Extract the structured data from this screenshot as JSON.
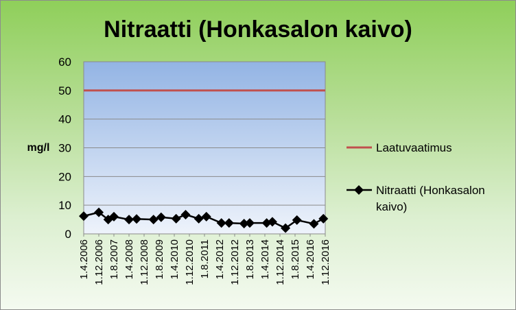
{
  "chart_data": {
    "type": "line",
    "title": "Nitraatti (Honkasalon kaivo)",
    "ylabel": "mg/l",
    "xlabel": "",
    "ylim": [
      0,
      60
    ],
    "yticks": [
      0,
      10,
      20,
      30,
      40,
      50,
      60
    ],
    "grid": true,
    "legend_position": "right",
    "x_tick_labels": [
      "1.4.2006",
      "1.12.2006",
      "1.8.2007",
      "1.4.2008",
      "1.12.2008",
      "1.8.2009",
      "1.4.2010",
      "1.12.2010",
      "1.8.2011",
      "1.4.2012",
      "1.12.2012",
      "1.8.2013",
      "1.4.2014",
      "1.12.2014",
      "1.8.2015",
      "1.4.2016",
      "1.12.2016"
    ],
    "x_range": [
      "2006-04-01",
      "2016-12-01"
    ],
    "series": [
      {
        "name": "Laatuvaatimus",
        "color": "#c0504d",
        "marker": "none",
        "points": [
          {
            "date": "2006-04-01",
            "value": 50
          },
          {
            "date": "2016-12-01",
            "value": 50
          }
        ]
      },
      {
        "name": "Nitraatti (Honkasalon kaivo)",
        "color": "#000000",
        "marker": "diamond",
        "points": [
          {
            "date": "2006-04-01",
            "value": 6.2
          },
          {
            "date": "2006-12-01",
            "value": 7.5
          },
          {
            "date": "2007-05-01",
            "value": 5.0
          },
          {
            "date": "2007-08-01",
            "value": 6.0
          },
          {
            "date": "2008-04-01",
            "value": 5.0
          },
          {
            "date": "2008-08-01",
            "value": 5.2
          },
          {
            "date": "2009-05-01",
            "value": 5.0
          },
          {
            "date": "2009-09-01",
            "value": 5.8
          },
          {
            "date": "2010-05-01",
            "value": 5.3
          },
          {
            "date": "2010-10-01",
            "value": 6.7
          },
          {
            "date": "2011-05-01",
            "value": 5.3
          },
          {
            "date": "2011-09-01",
            "value": 6.0
          },
          {
            "date": "2012-05-01",
            "value": 3.8
          },
          {
            "date": "2012-09-01",
            "value": 3.8
          },
          {
            "date": "2013-05-01",
            "value": 3.6
          },
          {
            "date": "2013-08-01",
            "value": 3.8
          },
          {
            "date": "2014-05-01",
            "value": 3.8
          },
          {
            "date": "2014-08-01",
            "value": 4.2
          },
          {
            "date": "2015-03-01",
            "value": 2.0
          },
          {
            "date": "2015-09-01",
            "value": 4.8
          },
          {
            "date": "2016-06-01",
            "value": 3.5
          },
          {
            "date": "2016-11-01",
            "value": 5.3
          }
        ]
      }
    ]
  }
}
